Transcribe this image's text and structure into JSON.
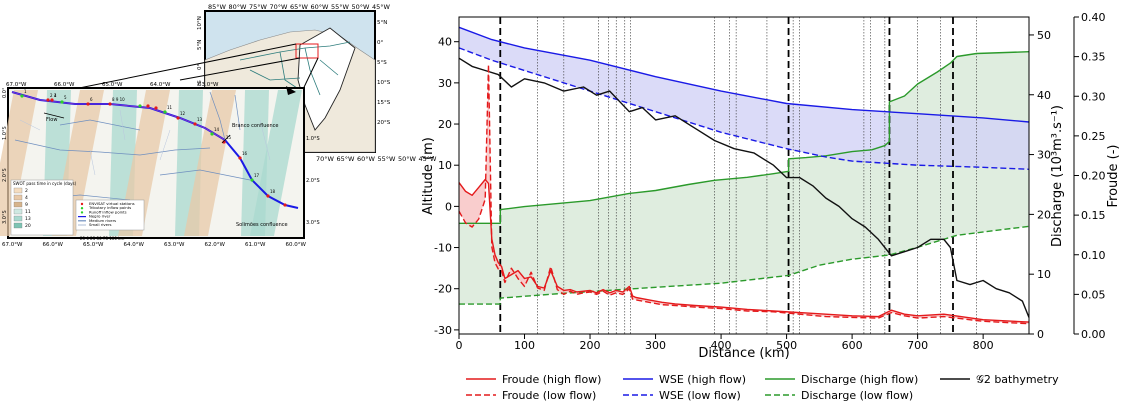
{
  "colors": {
    "froude": "#e41a1c",
    "wse": "#1a1ae6",
    "discharge": "#2b9a2b",
    "bathymetry": "#111111",
    "froude_fill": "#f8c8c8",
    "wse_fill": "#d2d2f6",
    "discharge_fill": "#dcebdc",
    "swath_orange": "#e8c9a8",
    "swath_teal": "#a9d9cf"
  },
  "map": {
    "inset": {
      "lon_ticks": [
        "85°W",
        "80°W",
        "75°W",
        "70°W",
        "65°W",
        "60°W",
        "55°W",
        "50°W",
        "45°W"
      ],
      "lat_ticks_left": [
        "10°N",
        "5°N",
        "0°",
        "5°S",
        "10°S",
        "15°S",
        "20°S"
      ],
      "lat_ticks_right": [
        "5°N",
        "0°",
        "5°S",
        "10°S",
        "15°S",
        "20°S"
      ]
    },
    "main": {
      "lon_ticks_top": [
        "67.0°W",
        "66.0°W",
        "65.0°W",
        "64.0°W",
        "63.0°W"
      ],
      "lon_ticks_bottom": [
        "67.0°W",
        "66.0°W",
        "65.0°W",
        "64.0°W",
        "63.0°W",
        "62.0°W",
        "61.0°W",
        "60.0°W"
      ],
      "lat_ticks_left": [
        "0.0°",
        "1.0°S",
        "2.0°S",
        "3.0°S"
      ],
      "lat_ticks_right": [
        "1.0°S",
        "2.0°S",
        "3.0°S"
      ],
      "labels": {
        "flow": "Flow",
        "branco": "Branco confluence",
        "solimoes": "Solimões confluence"
      },
      "station_numbers": [
        "1",
        "2 3",
        "4",
        "5",
        "6",
        "8 9 10",
        "11",
        "12",
        "13",
        "14",
        "15",
        "16",
        "17",
        "18"
      ],
      "legend_title": "SWOT pass time in cycle (days)",
      "legend_days": [
        "2",
        "4",
        "9",
        "11",
        "13",
        "20"
      ],
      "legend_items": [
        "ENVISAT virtual stations",
        "Tributary inflow points",
        "Runoff inflow points",
        "Negro river",
        "Medium rivers",
        "Small rivers"
      ],
      "scale_label": "25  0    25   50   75  100 km"
    }
  },
  "legend": {
    "froude_high": "Froude (high flow)",
    "froude_low": "Froude (low flow)",
    "wse_high": "WSE (high flow)",
    "wse_low": "WSE (low flow)",
    "discharge_high": "Discharge (high flow)",
    "discharge_low": "Discharge (low flow)",
    "bathymetry": "𝒢2 bathymetry"
  },
  "chart_data": {
    "type": "line",
    "xlabel": "Distance (km)",
    "ylabel_left": "Altitude (m)",
    "ylabel_right1": "Discharge (10³m³.s⁻¹)",
    "ylabel_right2": "Froude (-)",
    "xlim": [
      0,
      870
    ],
    "ylim_altitude": [
      -31,
      46
    ],
    "ylim_discharge": [
      0,
      53
    ],
    "ylim_froude": [
      0,
      0.4
    ],
    "x_ticks": [
      "0",
      "100",
      "200",
      "300",
      "400",
      "500",
      "600",
      "700",
      "800"
    ],
    "altitude_ticks": [
      "-30",
      "-20",
      "-10",
      "0",
      "10",
      "20",
      "30",
      "40"
    ],
    "discharge_ticks": [
      "0",
      "10",
      "20",
      "30",
      "40",
      "50"
    ],
    "froude_ticks": [
      "0.00",
      "0.05",
      "0.10",
      "0.15",
      "0.20",
      "0.25",
      "0.30",
      "0.35",
      "0.40"
    ],
    "thick_dashed_x": [
      63,
      503,
      657,
      754
    ],
    "thin_dotted_x": [
      120,
      160,
      213,
      228,
      240,
      253,
      262,
      390,
      413,
      423,
      470,
      510,
      520,
      618,
      628,
      650,
      700,
      735,
      790
    ],
    "wse_high": {
      "x": [
        0,
        50,
        100,
        200,
        300,
        400,
        500,
        600,
        700,
        800,
        870
      ],
      "y": [
        43.5,
        40.5,
        38.5,
        35.5,
        31.5,
        28,
        25,
        23.5,
        22.5,
        21.5,
        20.5
      ]
    },
    "wse_low": {
      "x": [
        0,
        50,
        100,
        200,
        300,
        400,
        500,
        560,
        600,
        700,
        800,
        870
      ],
      "y": [
        38.5,
        35.5,
        33,
        28,
        23,
        18,
        14,
        12,
        11,
        10,
        9.5,
        9
      ]
    },
    "bathymetry": {
      "x": [
        0,
        20,
        40,
        60,
        80,
        100,
        130,
        160,
        190,
        210,
        230,
        260,
        280,
        300,
        330,
        360,
        390,
        420,
        450,
        480,
        500,
        520,
        540,
        560,
        580,
        600,
        620,
        640,
        660,
        680,
        700,
        720,
        740,
        750,
        760,
        780,
        800,
        820,
        840,
        860,
        870
      ],
      "y": [
        36,
        34,
        33,
        32,
        29,
        31,
        30,
        28,
        29,
        27,
        28,
        23,
        24,
        21,
        22,
        19,
        16,
        14,
        13,
        10,
        7,
        7,
        5,
        2,
        0,
        -3,
        -5,
        -8,
        -12,
        -11,
        -10,
        -8,
        -8,
        -10,
        -18,
        -19,
        -18,
        -20,
        -21,
        -23,
        -27
      ]
    },
    "discharge_high": {
      "x": [
        0,
        63,
        63,
        100,
        150,
        200,
        260,
        300,
        350,
        390,
        440,
        480,
        503,
        503,
        530,
        560,
        600,
        630,
        650,
        657,
        657,
        680,
        700,
        730,
        750,
        760,
        790,
        870
      ],
      "y": [
        18.5,
        18.5,
        20.8,
        21.3,
        21.8,
        22.3,
        23.5,
        24,
        25,
        25.7,
        26.2,
        26.8,
        27.2,
        29.3,
        29.5,
        29.8,
        30.5,
        30.8,
        31.5,
        32.2,
        38.8,
        39.8,
        41.8,
        43.8,
        45.3,
        46.4,
        46.9,
        47.2
      ]
    },
    "discharge_low": {
      "x": [
        0,
        63,
        63,
        160,
        300,
        400,
        503,
        550,
        600,
        657,
        700,
        760,
        870
      ],
      "y": [
        5,
        5,
        6,
        6.8,
        7.8,
        8.5,
        9.8,
        11.5,
        12.5,
        13.2,
        14.5,
        16.5,
        18
      ]
    },
    "froude_high": {
      "x": [
        0,
        10,
        20,
        30,
        40,
        45,
        50,
        55,
        60,
        65,
        70,
        80,
        90,
        100,
        110,
        120,
        130,
        140,
        150,
        160,
        170,
        180,
        190,
        200,
        210,
        220,
        230,
        240,
        250,
        260,
        265,
        270,
        290,
        310,
        330,
        360,
        400,
        440,
        480,
        520,
        560,
        600,
        640,
        660,
        680,
        700,
        740,
        800,
        870
      ],
      "y": [
        0.191,
        0.18,
        0.175,
        0.185,
        0.195,
        0.19,
        0.12,
        0.1,
        0.09,
        0.085,
        0.07,
        0.075,
        0.08,
        0.07,
        0.072,
        0.06,
        0.058,
        0.08,
        0.06,
        0.055,
        0.056,
        0.053,
        0.054,
        0.055,
        0.052,
        0.056,
        0.052,
        0.055,
        0.053,
        0.06,
        0.048,
        0.046,
        0.043,
        0.04,
        0.038,
        0.036,
        0.034,
        0.031,
        0.029,
        0.027,
        0.025,
        0.023,
        0.022,
        0.03,
        0.025,
        0.023,
        0.025,
        0.018,
        0.015
      ]
    },
    "froude_low": {
      "x": [
        0,
        10,
        20,
        30,
        40,
        45,
        50,
        55,
        60,
        65,
        70,
        80,
        90,
        100,
        110,
        120,
        130,
        140,
        150,
        160,
        170,
        180,
        190,
        200,
        210,
        220,
        230,
        240,
        250,
        260,
        265,
        270,
        290,
        310,
        330,
        360,
        400,
        440,
        480,
        520,
        560,
        600,
        640,
        660,
        680,
        700,
        740,
        800,
        870
      ],
      "y": [
        0.155,
        0.14,
        0.135,
        0.145,
        0.17,
        0.34,
        0.11,
        0.09,
        0.082,
        0.08,
        0.065,
        0.083,
        0.07,
        0.06,
        0.078,
        0.058,
        0.055,
        0.085,
        0.056,
        0.05,
        0.054,
        0.05,
        0.052,
        0.053,
        0.05,
        0.054,
        0.049,
        0.052,
        0.05,
        0.057,
        0.044,
        0.043,
        0.04,
        0.037,
        0.036,
        0.034,
        0.032,
        0.029,
        0.028,
        0.025,
        0.022,
        0.021,
        0.02,
        0.027,
        0.023,
        0.02,
        0.022,
        0.016,
        0.013
      ]
    }
  }
}
